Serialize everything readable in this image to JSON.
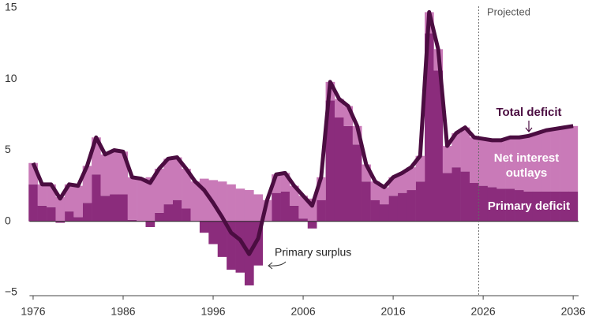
{
  "chart_data": {
    "type": "bar",
    "x": [
      1976,
      1977,
      1978,
      1979,
      1980,
      1981,
      1982,
      1983,
      1984,
      1985,
      1986,
      1987,
      1988,
      1989,
      1990,
      1991,
      1992,
      1993,
      1994,
      1995,
      1996,
      1997,
      1998,
      1999,
      2000,
      2001,
      2002,
      2003,
      2004,
      2005,
      2006,
      2007,
      2008,
      2009,
      2010,
      2011,
      2012,
      2013,
      2014,
      2015,
      2016,
      2017,
      2018,
      2019,
      2020,
      2021,
      2022,
      2023,
      2024,
      2025,
      2026,
      2027,
      2028,
      2029,
      2030,
      2031,
      2032,
      2033,
      2034,
      2035,
      2036
    ],
    "series": [
      {
        "name": "Primary deficit",
        "type": "bar",
        "color": "#8b2c7c",
        "values": [
          2.6,
          1.1,
          1.0,
          -0.1,
          0.7,
          0.3,
          1.3,
          3.3,
          1.8,
          1.9,
          1.9,
          0.1,
          0.0,
          -0.4,
          0.6,
          1.2,
          1.5,
          0.9,
          0.0,
          -0.8,
          -1.6,
          -2.5,
          -3.4,
          -3.6,
          -4.5,
          -3.1,
          0.0,
          2.0,
          2.1,
          1.1,
          0.2,
          -0.5,
          1.5,
          8.5,
          7.3,
          6.7,
          5.4,
          2.8,
          1.5,
          1.2,
          1.8,
          2.0,
          2.2,
          2.8,
          13.2,
          10.6,
          3.4,
          3.8,
          3.5,
          2.7,
          2.5,
          2.4,
          2.3,
          2.3,
          2.2,
          2.1,
          2.1,
          2.1,
          2.1,
          2.1,
          2.1
        ]
      },
      {
        "name": "Net interest outlays",
        "type": "bar",
        "color": "#c97ab8",
        "values": [
          1.5,
          1.5,
          1.6,
          1.7,
          1.9,
          2.2,
          2.6,
          2.6,
          2.9,
          3.1,
          3.0,
          3.0,
          3.0,
          3.1,
          3.1,
          3.2,
          3.0,
          2.8,
          2.8,
          3.0,
          2.9,
          2.8,
          2.6,
          2.3,
          2.2,
          1.9,
          1.5,
          1.3,
          1.3,
          1.4,
          1.6,
          1.6,
          1.6,
          1.3,
          1.3,
          1.4,
          1.3,
          1.2,
          1.3,
          1.2,
          1.3,
          1.4,
          1.6,
          1.8,
          1.5,
          1.5,
          1.9,
          2.4,
          3.1,
          3.2,
          3.3,
          3.3,
          3.4,
          3.6,
          3.7,
          3.9,
          4.1,
          4.3,
          4.4,
          4.5,
          4.6
        ]
      },
      {
        "name": "Total deficit",
        "type": "line",
        "color": "#4b0d41",
        "values": [
          4.1,
          2.6,
          2.6,
          1.6,
          2.6,
          2.5,
          3.9,
          5.9,
          4.7,
          5.0,
          4.9,
          3.1,
          3.0,
          2.7,
          3.7,
          4.4,
          4.5,
          3.7,
          2.8,
          2.2,
          1.3,
          0.3,
          -0.8,
          -1.3,
          -2.3,
          -1.2,
          1.5,
          3.3,
          3.4,
          2.5,
          1.8,
          1.1,
          3.1,
          9.8,
          8.6,
          8.1,
          6.7,
          4.0,
          2.8,
          2.4,
          3.1,
          3.4,
          3.8,
          4.6,
          14.7,
          12.1,
          5.3,
          6.2,
          6.6,
          5.9,
          5.8,
          5.7,
          5.7,
          5.9,
          5.9,
          6.0,
          6.2,
          6.4,
          6.5,
          6.6,
          6.7
        ]
      }
    ],
    "annotations": [
      "Projected",
      "Primary surplus"
    ],
    "projection_start": 2025.5,
    "xlim": [
      1975.6,
      2036.6
    ],
    "xticks": [
      1976,
      1986,
      1996,
      2006,
      2016,
      2026,
      2036
    ],
    "ylim": [
      -5,
      15
    ],
    "yticks": [
      {
        "value": -5,
        "label": "−5"
      },
      0,
      5,
      10,
      15
    ]
  }
}
